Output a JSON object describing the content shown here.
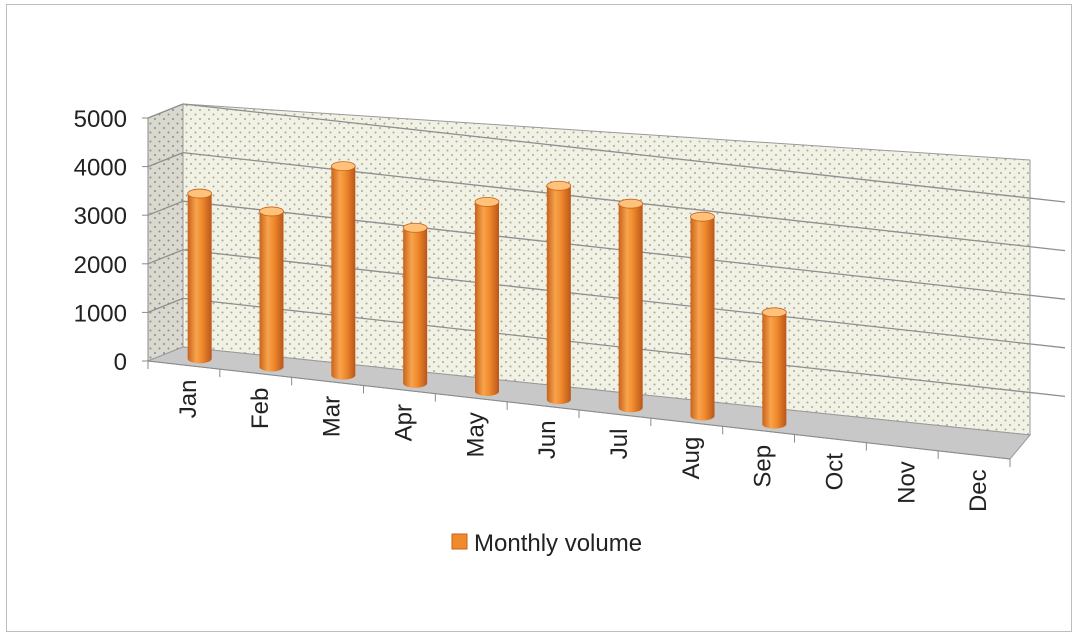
{
  "chart_data": {
    "type": "bar",
    "categories": [
      "Jan",
      "Feb",
      "Mar",
      "Apr",
      "May",
      "Jun",
      "Jul",
      "Aug",
      "Sep",
      "Oct",
      "Nov",
      "Dec"
    ],
    "series": [
      {
        "name": "Monthly volume",
        "values": [
          3400,
          3200,
          4300,
          3200,
          3900,
          4400,
          4200,
          4100,
          2300,
          null,
          null,
          null
        ]
      }
    ],
    "yticks": [
      0,
      1000,
      2000,
      3000,
      4000,
      5000
    ],
    "ylim": [
      0,
      5000
    ],
    "grid": true,
    "legend": "bottom",
    "colors": {
      "bar": "#f08a2c",
      "bar_dark": "#c9621a",
      "bar_light": "#ffc27a",
      "wall": "#f1f1e4",
      "floor": "#c9c9c9"
    }
  }
}
